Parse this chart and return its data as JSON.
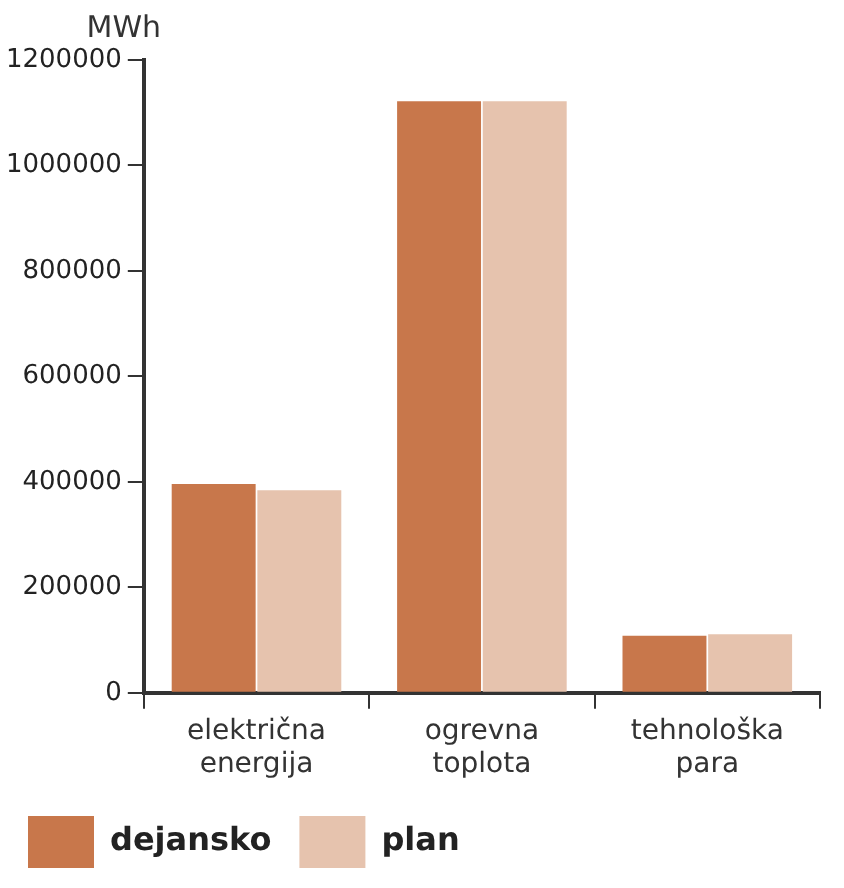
{
  "chart_data": {
    "type": "bar",
    "ylabel": "MWh",
    "categories": [
      "električna energija",
      "ogrevna toplota",
      "tehnološka para"
    ],
    "series": [
      {
        "name": "dejansko",
        "color": "#c8774b",
        "values": [
          396000,
          1122000,
          108000
        ]
      },
      {
        "name": "plan",
        "color": "#e6c3ae",
        "values": [
          384000,
          1122000,
          111000
        ]
      }
    ],
    "ylim": [
      0,
      1200000
    ],
    "yticks": [
      0,
      200000,
      400000,
      600000,
      800000,
      1000000,
      1200000
    ],
    "grid": false,
    "legend": "bottom"
  }
}
